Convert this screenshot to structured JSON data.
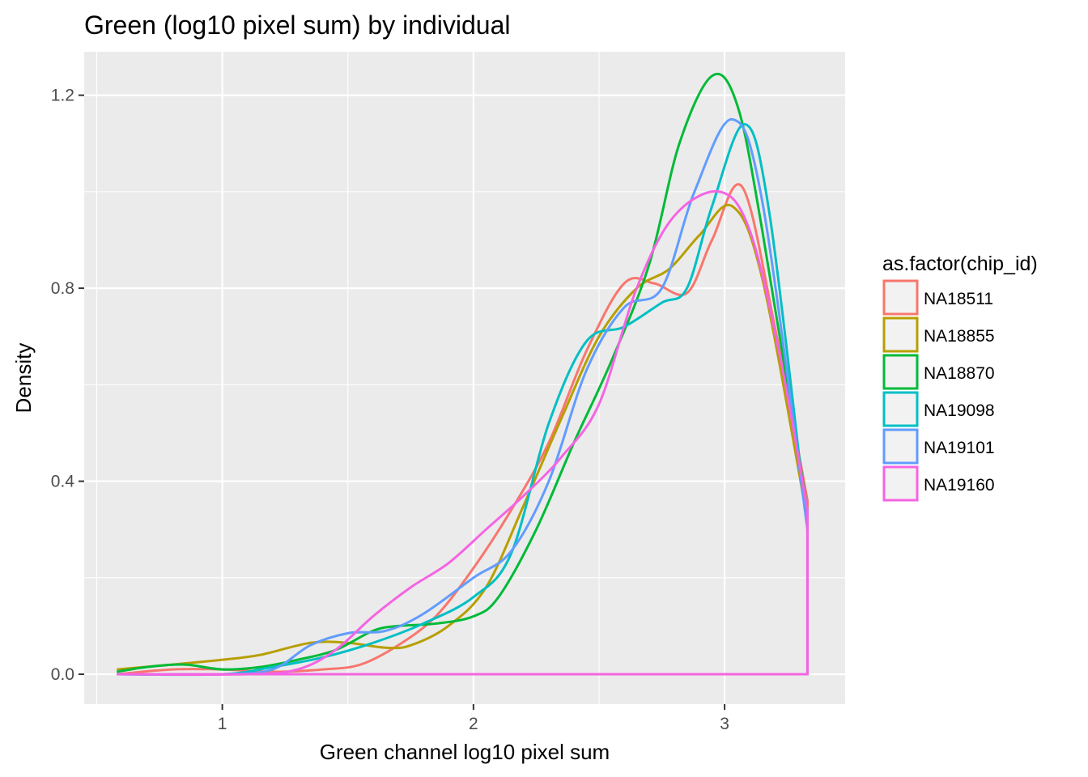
{
  "chart_data": {
    "type": "density",
    "title": "Green (log10 pixel sum) by individual",
    "xlabel": "Green channel log10 pixel sum",
    "ylabel": "Density",
    "xlim": [
      0.45,
      3.48
    ],
    "ylim": [
      -0.062,
      1.29
    ],
    "x_ticks": [
      {
        "value": 1,
        "label": "1"
      },
      {
        "value": 2,
        "label": "2"
      },
      {
        "value": 3,
        "label": "3"
      }
    ],
    "y_ticks": [
      {
        "value": 0.0,
        "label": "0.0"
      },
      {
        "value": 0.4,
        "label": "0.4"
      },
      {
        "value": 0.8,
        "label": "0.8"
      },
      {
        "value": 1.2,
        "label": "1.2"
      }
    ],
    "x_minor": [
      0.5,
      1.5,
      2.5
    ],
    "y_minor": [
      0.2,
      0.6,
      1.0
    ],
    "grid": true,
    "panel_background": "#ebebeb",
    "grid_color": "#ffffff",
    "legend": {
      "title": "as.factor(chip_id)",
      "position": "right",
      "fill": "#f2f2f2"
    },
    "series": [
      {
        "name": "NA18511",
        "color": "#F8766D",
        "x": [
          0.58,
          0.8,
          1.0,
          1.2,
          1.4,
          1.55,
          1.7,
          1.85,
          2.0,
          2.15,
          2.3,
          2.45,
          2.6,
          2.72,
          2.85,
          2.95,
          3.07,
          3.2,
          3.33
        ],
        "y": [
          0.0,
          0.01,
          0.01,
          0.005,
          0.01,
          0.02,
          0.06,
          0.12,
          0.22,
          0.34,
          0.48,
          0.67,
          0.81,
          0.81,
          0.79,
          0.9,
          1.01,
          0.72,
          0.36
        ]
      },
      {
        "name": "NA18855",
        "color": "#B79F00",
        "x": [
          0.58,
          0.8,
          1.0,
          1.15,
          1.35,
          1.5,
          1.65,
          1.75,
          1.9,
          2.05,
          2.2,
          2.35,
          2.5,
          2.65,
          2.78,
          2.9,
          3.03,
          3.15,
          3.33
        ],
        "y": [
          0.01,
          0.02,
          0.03,
          0.04,
          0.065,
          0.065,
          0.055,
          0.06,
          0.1,
          0.18,
          0.35,
          0.53,
          0.7,
          0.8,
          0.84,
          0.91,
          0.97,
          0.82,
          0.32
        ]
      },
      {
        "name": "NA18870",
        "color": "#00BA38",
        "x": [
          0.58,
          0.7,
          0.85,
          1.0,
          1.15,
          1.3,
          1.45,
          1.6,
          1.7,
          1.85,
          2.0,
          2.1,
          2.25,
          2.4,
          2.55,
          2.7,
          2.82,
          2.95,
          3.05,
          3.15,
          3.33
        ],
        "y": [
          0.005,
          0.015,
          0.02,
          0.01,
          0.015,
          0.03,
          0.05,
          0.09,
          0.1,
          0.105,
          0.12,
          0.16,
          0.3,
          0.48,
          0.65,
          0.85,
          1.1,
          1.24,
          1.18,
          0.92,
          0.34
        ]
      },
      {
        "name": "NA19098",
        "color": "#00BFC4",
        "x": [
          0.58,
          1.0,
          1.2,
          1.4,
          1.6,
          1.8,
          2.0,
          2.15,
          2.3,
          2.45,
          2.6,
          2.75,
          2.85,
          2.95,
          3.08,
          3.18,
          3.33
        ],
        "y": [
          0.0,
          0.0,
          0.015,
          0.035,
          0.065,
          0.105,
          0.16,
          0.25,
          0.52,
          0.69,
          0.72,
          0.77,
          0.8,
          0.97,
          1.14,
          0.95,
          0.3
        ]
      },
      {
        "name": "NA19101",
        "color": "#619CFF",
        "x": [
          0.58,
          1.0,
          1.2,
          1.35,
          1.5,
          1.65,
          1.8,
          2.0,
          2.15,
          2.3,
          2.45,
          2.6,
          2.75,
          2.88,
          3.03,
          3.15,
          3.33
        ],
        "y": [
          0.0,
          0.0,
          0.01,
          0.06,
          0.085,
          0.09,
          0.125,
          0.2,
          0.255,
          0.4,
          0.63,
          0.76,
          0.8,
          1.0,
          1.15,
          0.98,
          0.3
        ]
      },
      {
        "name": "NA19160",
        "color": "#F564E3",
        "x": [
          0.58,
          1.1,
          1.3,
          1.45,
          1.6,
          1.75,
          1.9,
          2.05,
          2.2,
          2.35,
          2.5,
          2.65,
          2.8,
          2.98,
          3.1,
          3.22,
          3.33
        ],
        "y": [
          0.0,
          0.0,
          0.01,
          0.05,
          0.12,
          0.18,
          0.23,
          0.3,
          0.37,
          0.45,
          0.56,
          0.8,
          0.95,
          1.0,
          0.92,
          0.66,
          0.34
        ]
      }
    ]
  }
}
